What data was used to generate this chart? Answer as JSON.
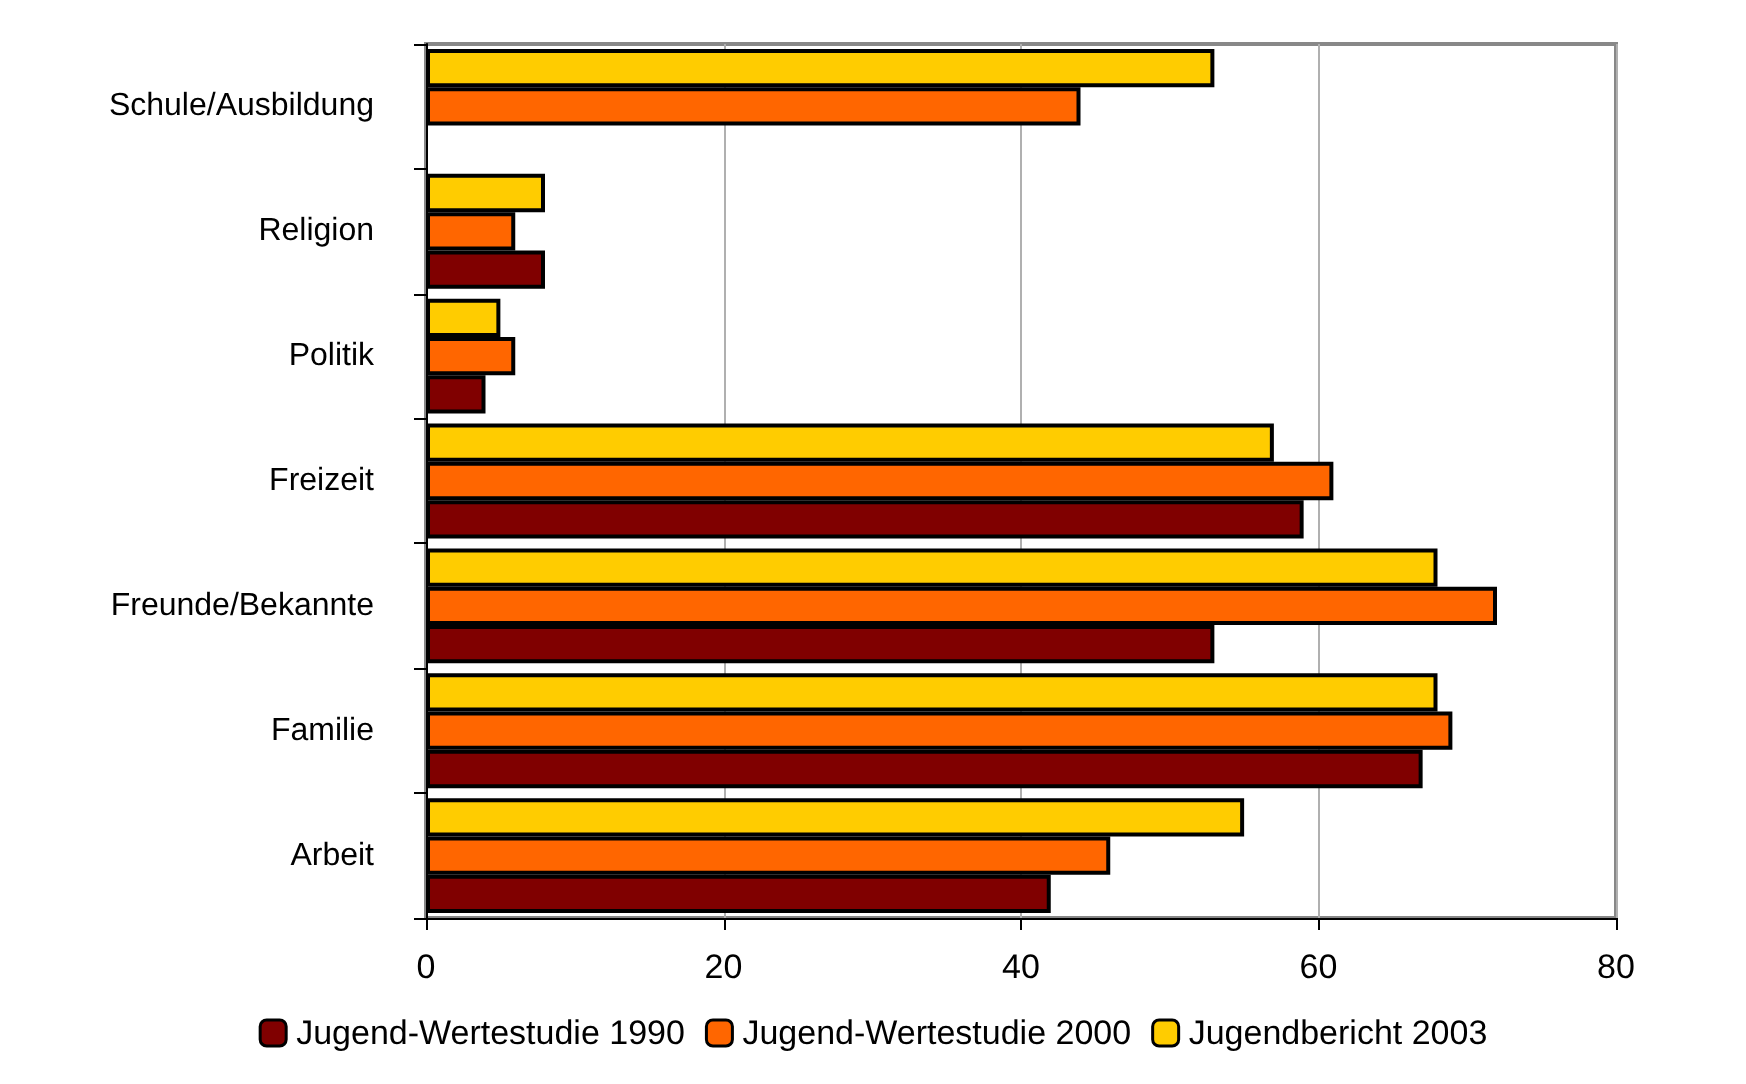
{
  "chart_data": {
    "type": "bar",
    "orientation": "horizontal",
    "categories": [
      "Schule/Ausbildung",
      "Religion",
      "Politik",
      "Freizeit",
      "Freunde/Bekannte",
      "Familie",
      "Arbeit"
    ],
    "series": [
      {
        "name": "Jugend-Wertestudie 1990",
        "color": "#800000",
        "values": [
          null,
          8,
          4,
          59,
          53,
          67,
          42
        ]
      },
      {
        "name": "Jugend-Wertestudie 2000",
        "color": "#ff6600",
        "values": [
          44,
          6,
          6,
          61,
          72,
          69,
          46
        ]
      },
      {
        "name": "Jugendbericht 2003",
        "color": "#ffcc00",
        "values": [
          53,
          8,
          5,
          57,
          68,
          68,
          55
        ]
      }
    ],
    "xlim": [
      0,
      80
    ],
    "xticks": [
      0,
      20,
      40,
      60,
      80
    ],
    "grid": "x",
    "legend": "bottom"
  }
}
